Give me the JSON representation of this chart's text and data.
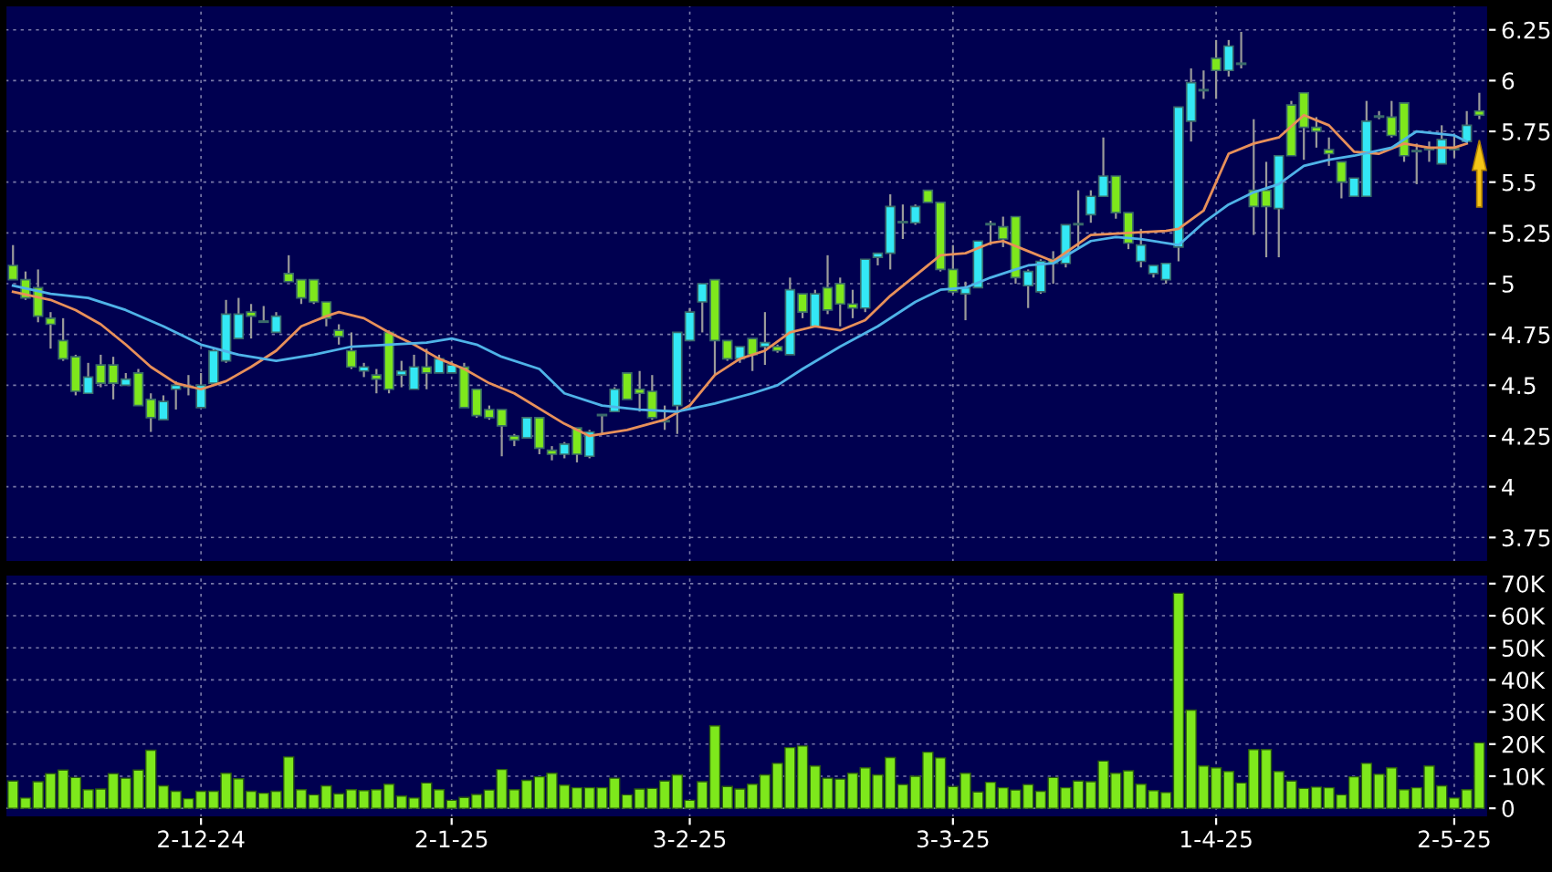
{
  "chart_data": [
    {
      "type": "candlestick",
      "tick_labels": "y",
      "grid": true,
      "categories": [
        null,
        null,
        null,
        null,
        null,
        null,
        null,
        null,
        null,
        null,
        null,
        null,
        null,
        null,
        null,
        null,
        null,
        null,
        null,
        null,
        null,
        null,
        null,
        null,
        null,
        null,
        null,
        null,
        null,
        null,
        null,
        null,
        null,
        null,
        null,
        null,
        null,
        null,
        null,
        null,
        null,
        null,
        null,
        null,
        null,
        null,
        null,
        null,
        null,
        null,
        null,
        null,
        null,
        null,
        null,
        null,
        null,
        null,
        null,
        null,
        null,
        null,
        null,
        null,
        null,
        null,
        null,
        null,
        null,
        null,
        null,
        null,
        null,
        null,
        null,
        null,
        null,
        null,
        null,
        null,
        null,
        null,
        null,
        null,
        null,
        null,
        null,
        null,
        null,
        null,
        null,
        null,
        null,
        null,
        null,
        null,
        null,
        null,
        null,
        null,
        null,
        null,
        null,
        null,
        null,
        null,
        null,
        null,
        null,
        null,
        null,
        null,
        null,
        null,
        null,
        null,
        null,
        null
      ],
      "ohlc": [
        [
          5.09,
          5.19,
          5.02,
          5.02
        ],
        [
          5.02,
          5.06,
          4.92,
          4.93
        ],
        [
          4.98,
          5.07,
          4.81,
          4.84
        ],
        [
          4.83,
          4.86,
          4.68,
          4.8
        ],
        [
          4.72,
          4.83,
          4.62,
          4.63
        ],
        [
          4.64,
          4.65,
          4.45,
          4.47
        ],
        [
          4.46,
          4.61,
          4.46,
          4.54
        ],
        [
          4.6,
          4.65,
          4.49,
          4.51
        ],
        [
          4.6,
          4.64,
          4.43,
          4.51
        ],
        [
          4.5,
          4.56,
          4.5,
          4.53
        ],
        [
          4.56,
          4.58,
          4.4,
          4.4
        ],
        [
          4.43,
          4.46,
          4.27,
          4.34
        ],
        [
          4.33,
          4.45,
          4.33,
          4.42
        ],
        [
          4.48,
          4.52,
          4.38,
          4.5
        ],
        [
          4.49,
          4.55,
          4.45,
          4.49
        ],
        [
          4.39,
          4.56,
          4.39,
          4.5
        ],
        [
          4.51,
          4.68,
          4.51,
          4.67
        ],
        [
          4.62,
          4.92,
          4.61,
          4.85
        ],
        [
          4.73,
          4.93,
          4.73,
          4.85
        ],
        [
          4.86,
          4.9,
          4.73,
          4.84
        ],
        [
          4.81,
          4.89,
          4.81,
          4.81
        ],
        [
          4.76,
          4.86,
          4.76,
          4.84
        ],
        [
          5.05,
          5.14,
          5.01,
          5.01
        ],
        [
          5.02,
          5.02,
          4.9,
          4.93
        ],
        [
          5.02,
          5.02,
          4.9,
          4.91
        ],
        [
          4.91,
          4.91,
          4.79,
          4.83
        ],
        [
          4.77,
          4.8,
          4.7,
          4.74
        ],
        [
          4.67,
          4.76,
          4.58,
          4.59
        ],
        [
          4.57,
          4.61,
          4.54,
          4.59
        ],
        [
          4.55,
          4.58,
          4.46,
          4.53
        ],
        [
          4.76,
          4.77,
          4.46,
          4.48
        ],
        [
          4.55,
          4.62,
          4.49,
          4.57
        ],
        [
          4.48,
          4.65,
          4.48,
          4.59
        ],
        [
          4.59,
          4.68,
          4.48,
          4.56
        ],
        [
          4.56,
          4.65,
          4.56,
          4.63
        ],
        [
          4.56,
          4.62,
          4.56,
          4.6
        ],
        [
          4.59,
          4.61,
          4.39,
          4.39
        ],
        [
          4.48,
          4.48,
          4.34,
          4.35
        ],
        [
          4.38,
          4.4,
          4.33,
          4.34
        ],
        [
          4.38,
          4.38,
          4.15,
          4.3
        ],
        [
          4.25,
          4.26,
          4.2,
          4.23
        ],
        [
          4.24,
          4.34,
          4.24,
          4.34
        ],
        [
          4.34,
          4.34,
          4.16,
          4.19
        ],
        [
          4.18,
          4.2,
          4.13,
          4.16
        ],
        [
          4.16,
          4.22,
          4.14,
          4.21
        ],
        [
          4.29,
          4.29,
          4.12,
          4.16
        ],
        [
          4.15,
          4.28,
          4.14,
          4.27
        ],
        [
          4.35,
          4.35,
          4.26,
          4.35
        ],
        [
          4.37,
          4.49,
          4.37,
          4.48
        ],
        [
          4.56,
          4.56,
          4.43,
          4.43
        ],
        [
          4.48,
          4.57,
          4.37,
          4.46
        ],
        [
          4.47,
          4.55,
          4.33,
          4.34
        ],
        [
          4.32,
          4.4,
          4.28,
          4.32
        ],
        [
          4.4,
          4.76,
          4.26,
          4.76
        ],
        [
          4.72,
          4.88,
          4.72,
          4.86
        ],
        [
          4.91,
          5.0,
          4.76,
          5.0
        ],
        [
          5.02,
          5.02,
          4.55,
          4.72
        ],
        [
          4.72,
          4.72,
          4.62,
          4.63
        ],
        [
          4.63,
          4.69,
          4.61,
          4.69
        ],
        [
          4.73,
          4.73,
          4.57,
          4.65
        ],
        [
          4.69,
          4.86,
          4.6,
          4.71
        ],
        [
          4.69,
          4.7,
          4.66,
          4.67
        ],
        [
          4.65,
          5.03,
          4.65,
          4.97
        ],
        [
          4.95,
          4.95,
          4.83,
          4.86
        ],
        [
          4.79,
          4.97,
          4.79,
          4.95
        ],
        [
          4.98,
          5.14,
          4.85,
          4.87
        ],
        [
          5.0,
          5.03,
          4.79,
          4.9
        ],
        [
          4.9,
          4.97,
          4.83,
          4.88
        ],
        [
          4.88,
          5.12,
          4.86,
          5.12
        ],
        [
          5.13,
          5.15,
          5.09,
          5.15
        ],
        [
          5.15,
          5.44,
          5.07,
          5.38
        ],
        [
          5.3,
          5.39,
          5.22,
          5.3
        ],
        [
          5.3,
          5.39,
          5.29,
          5.38
        ],
        [
          5.46,
          5.46,
          5.4,
          5.4
        ],
        [
          5.4,
          5.4,
          5.06,
          5.07
        ],
        [
          5.07,
          5.19,
          4.95,
          4.96
        ],
        [
          4.95,
          5.01,
          4.82,
          4.98
        ],
        [
          4.98,
          5.21,
          4.98,
          5.21
        ],
        [
          5.29,
          5.31,
          5.19,
          5.29
        ],
        [
          5.28,
          5.33,
          5.18,
          5.22
        ],
        [
          5.33,
          5.33,
          5.0,
          5.03
        ],
        [
          4.99,
          5.07,
          4.88,
          5.06
        ],
        [
          4.96,
          5.12,
          4.95,
          5.11
        ],
        [
          5.12,
          5.16,
          5.0,
          5.1
        ],
        [
          5.1,
          5.29,
          5.08,
          5.29
        ],
        [
          5.29,
          5.46,
          5.17,
          5.29
        ],
        [
          5.34,
          5.46,
          5.3,
          5.43
        ],
        [
          5.43,
          5.72,
          5.43,
          5.53
        ],
        [
          5.53,
          5.53,
          5.32,
          5.35
        ],
        [
          5.35,
          5.35,
          5.17,
          5.2
        ],
        [
          5.11,
          5.27,
          5.08,
          5.19
        ],
        [
          5.05,
          5.09,
          5.03,
          5.09
        ],
        [
          5.02,
          5.1,
          5.0,
          5.1
        ],
        [
          5.18,
          5.87,
          5.11,
          5.87
        ],
        [
          5.8,
          6.06,
          5.7,
          5.99
        ],
        [
          5.95,
          6.05,
          5.91,
          5.95
        ],
        [
          6.11,
          6.2,
          5.91,
          6.05
        ],
        [
          6.05,
          6.2,
          6.02,
          6.17
        ],
        [
          6.08,
          6.24,
          6.06,
          6.08
        ],
        [
          5.46,
          5.81,
          5.24,
          5.38
        ],
        [
          5.46,
          5.6,
          5.13,
          5.38
        ],
        [
          5.37,
          5.63,
          5.13,
          5.63
        ],
        [
          5.88,
          5.9,
          5.63,
          5.63
        ],
        [
          5.94,
          5.94,
          5.61,
          5.77
        ],
        [
          5.77,
          5.82,
          5.67,
          5.75
        ],
        [
          5.66,
          5.72,
          5.58,
          5.64
        ],
        [
          5.6,
          5.6,
          5.42,
          5.5
        ],
        [
          5.43,
          5.52,
          5.43,
          5.52
        ],
        [
          5.43,
          5.9,
          5.43,
          5.8
        ],
        [
          5.82,
          5.85,
          5.81,
          5.82
        ],
        [
          5.82,
          5.9,
          5.72,
          5.73
        ],
        [
          5.89,
          5.89,
          5.6,
          5.63
        ],
        [
          5.65,
          5.69,
          5.49,
          5.65
        ],
        [
          5.66,
          5.7,
          5.6,
          5.66
        ],
        [
          5.59,
          5.78,
          5.59,
          5.71
        ],
        [
          5.66,
          5.73,
          5.62,
          5.66
        ],
        [
          5.7,
          5.85,
          5.7,
          5.78
        ],
        [
          5.85,
          5.94,
          5.81,
          5.83
        ]
      ],
      "colors": [
        "#7ee81c",
        "#7ee81c",
        "#7ee81c",
        "#7ee81c",
        "#7ee81c",
        "#7ee81c",
        "#33e8f5",
        "#7ee81c",
        "#7ee81c",
        "#33e8f5",
        "#7ee81c",
        "#7ee81c",
        "#33e8f5",
        "#33e8f5",
        "#b0b0b0",
        "#33e8f5",
        "#33e8f5",
        "#33e8f5",
        "#33e8f5",
        "#7ee81c",
        "#b0b0b0",
        "#33e8f5",
        "#7ee81c",
        "#7ee81c",
        "#7ee81c",
        "#7ee81c",
        "#7ee81c",
        "#7ee81c",
        "#33e8f5",
        "#7ee81c",
        "#7ee81c",
        "#33e8f5",
        "#33e8f5",
        "#7ee81c",
        "#33e8f5",
        "#33e8f5",
        "#7ee81c",
        "#7ee81c",
        "#7ee81c",
        "#7ee81c",
        "#7ee81c",
        "#33e8f5",
        "#7ee81c",
        "#7ee81c",
        "#33e8f5",
        "#7ee81c",
        "#33e8f5",
        "#b0b0b0",
        "#33e8f5",
        "#7ee81c",
        "#7ee81c",
        "#7ee81c",
        "#b0b0b0",
        "#33e8f5",
        "#33e8f5",
        "#33e8f5",
        "#7ee81c",
        "#7ee81c",
        "#33e8f5",
        "#7ee81c",
        "#33e8f5",
        "#7ee81c",
        "#33e8f5",
        "#7ee81c",
        "#33e8f5",
        "#7ee81c",
        "#7ee81c",
        "#7ee81c",
        "#33e8f5",
        "#33e8f5",
        "#33e8f5",
        "#b0b0b0",
        "#33e8f5",
        "#7ee81c",
        "#7ee81c",
        "#7ee81c",
        "#33e8f5",
        "#33e8f5",
        "#b0b0b0",
        "#7ee81c",
        "#7ee81c",
        "#33e8f5",
        "#33e8f5",
        "#7ee81c",
        "#33e8f5",
        "#b0b0b0",
        "#33e8f5",
        "#33e8f5",
        "#7ee81c",
        "#7ee81c",
        "#33e8f5",
        "#33e8f5",
        "#33e8f5",
        "#33e8f5",
        "#33e8f5",
        "#b0b0b0",
        "#7ee81c",
        "#33e8f5",
        "#b0b0b0",
        "#7ee81c",
        "#7ee81c",
        "#33e8f5",
        "#7ee81c",
        "#7ee81c",
        "#7ee81c",
        "#7ee81c",
        "#7ee81c",
        "#33e8f5",
        "#33e8f5",
        "#b0b0b0",
        "#7ee81c",
        "#7ee81c",
        "#b0b0b0",
        "#b0b0b0",
        "#33e8f5",
        "#b0b0b0",
        "#33e8f5",
        "#7ee81c"
      ],
      "series": [
        {
          "type": "line",
          "color": "#e8905a",
          "values": [
            4.96,
            null,
            null,
            4.92,
            null,
            4.87,
            null,
            4.8,
            null,
            4.7,
            null,
            4.59,
            null,
            4.51,
            null,
            4.48,
            null,
            4.52,
            null,
            4.59,
            null,
            4.67,
            null,
            4.79,
            null,
            4.84,
            4.86,
            null,
            4.83,
            null,
            4.76,
            null,
            4.7,
            null,
            4.63,
            null,
            4.58,
            null,
            4.51,
            null,
            4.46,
            null,
            null,
            null,
            4.31,
            null,
            4.25,
            null,
            null,
            4.28,
            null,
            null,
            4.33,
            null,
            4.4,
            null,
            4.55,
            null,
            4.63,
            null,
            4.67,
            null,
            4.76,
            null,
            4.79,
            null,
            4.77,
            null,
            4.82,
            null,
            4.94,
            null,
            5.04,
            null,
            5.14,
            null,
            5.15,
            null,
            5.2,
            5.21,
            null,
            5.16,
            null,
            5.11,
            null,
            null,
            5.24,
            null,
            null,
            5.25,
            null,
            null,
            5.26,
            5.27,
            null,
            5.36,
            null,
            5.64,
            null,
            5.69,
            null,
            5.72,
            null,
            5.83,
            null,
            5.78,
            null,
            5.65,
            null,
            5.64,
            null,
            5.69,
            null,
            5.67,
            null,
            5.67,
            5.69,
            null
          ]
        },
        {
          "type": "line",
          "color": "#4fb3e8",
          "values": [
            4.99,
            null,
            null,
            4.95,
            null,
            null,
            4.93,
            null,
            null,
            4.87,
            null,
            null,
            4.79,
            null,
            null,
            4.7,
            null,
            null,
            4.65,
            null,
            null,
            4.62,
            null,
            null,
            4.65,
            null,
            null,
            4.69,
            null,
            null,
            4.7,
            null,
            null,
            4.71,
            null,
            4.73,
            null,
            4.7,
            null,
            4.64,
            null,
            null,
            4.58,
            null,
            4.46,
            null,
            null,
            4.4,
            null,
            null,
            4.38,
            null,
            null,
            4.37,
            null,
            null,
            4.41,
            null,
            null,
            4.46,
            null,
            4.5,
            null,
            4.58,
            null,
            null,
            4.69,
            null,
            null,
            4.79,
            null,
            null,
            4.91,
            null,
            4.97,
            null,
            4.98,
            null,
            5.03,
            null,
            5.07,
            5.09,
            null,
            5.1,
            null,
            null,
            5.21,
            null,
            5.23,
            null,
            5.22,
            null,
            null,
            5.19,
            null,
            5.3,
            null,
            5.39,
            null,
            5.45,
            null,
            5.49,
            null,
            5.58,
            null,
            5.61,
            null,
            5.63,
            null,
            null,
            5.67,
            null,
            5.75,
            null,
            null,
            5.73,
            5.7,
            null
          ]
        }
      ],
      "ylim": [
        3.63,
        6.37
      ],
      "yticks": [
        3.75,
        4,
        4.25,
        4.5,
        4.75,
        5,
        5.25,
        5.5,
        5.75,
        6,
        6.25
      ]
    },
    {
      "type": "bar",
      "grid": true,
      "color": "#7ee81c",
      "categories": [
        null,
        null,
        null,
        null,
        null,
        null,
        null,
        null,
        null,
        null,
        null,
        null,
        null,
        null,
        null,
        "2-12-24",
        null,
        null,
        null,
        null,
        null,
        null,
        null,
        null,
        null,
        null,
        null,
        null,
        null,
        null,
        null,
        null,
        null,
        null,
        null,
        "2-1-25",
        null,
        null,
        null,
        null,
        null,
        null,
        null,
        null,
        null,
        null,
        null,
        null,
        null,
        null,
        null,
        null,
        null,
        null,
        "3-2-25",
        null,
        null,
        null,
        null,
        null,
        null,
        null,
        null,
        null,
        null,
        null,
        null,
        null,
        null,
        null,
        null,
        null,
        null,
        null,
        null,
        "3-3-25",
        null,
        null,
        null,
        null,
        null,
        null,
        null,
        null,
        null,
        null,
        null,
        null,
        null,
        null,
        null,
        null,
        null,
        null,
        null,
        null,
        "1-4-25",
        null,
        null,
        null,
        null,
        null,
        null,
        null,
        null,
        null,
        null,
        null,
        null,
        null,
        null,
        null,
        null,
        null,
        null,
        "2-5-25",
        null,
        null
      ],
      "values": [
        8500,
        3200,
        8300,
        10800,
        11900,
        9600,
        5800,
        6000,
        10800,
        9400,
        11900,
        18100,
        7000,
        5300,
        3000,
        5300,
        5300,
        10900,
        9200,
        5300,
        4700,
        5300,
        16000,
        5800,
        4200,
        7000,
        4500,
        5800,
        5500,
        5800,
        7500,
        3800,
        3200,
        7900,
        5800,
        2500,
        3400,
        4300,
        5700,
        12100,
        5800,
        8700,
        9800,
        10900,
        7200,
        6400,
        6400,
        6400,
        9400,
        4200,
        6000,
        6200,
        8500,
        10400,
        2500,
        8300,
        25700,
        6800,
        6000,
        7500,
        10400,
        14000,
        18900,
        19400,
        13200,
        9400,
        9100,
        10900,
        12600,
        10400,
        15800,
        7400,
        10000,
        17500,
        15700,
        6800,
        10900,
        5100,
        8100,
        6400,
        5700,
        7400,
        5300,
        9600,
        6400,
        8500,
        8300,
        14700,
        10900,
        11700,
        7500,
        5500,
        4900,
        67000,
        30600,
        13200,
        12600,
        11500,
        7900,
        18300,
        18300,
        11500,
        8500,
        6200,
        6600,
        6400,
        4200,
        9800,
        14000,
        10600,
        12600,
        5800,
        6400,
        13200,
        7000,
        3200,
        5800,
        20400
      ],
      "ylim": [
        -2800,
        72800
      ],
      "yticks": [
        0,
        {
          "value": 10000,
          "label": "10K"
        },
        {
          "value": 20000,
          "label": "20K"
        },
        {
          "value": 30000,
          "label": "30K"
        },
        {
          "value": 40000,
          "label": "40K"
        },
        {
          "value": 50000,
          "label": "50K"
        },
        {
          "value": 60000,
          "label": "60K"
        },
        {
          "value": 70000,
          "label": "70K"
        }
      ]
    }
  ]
}
